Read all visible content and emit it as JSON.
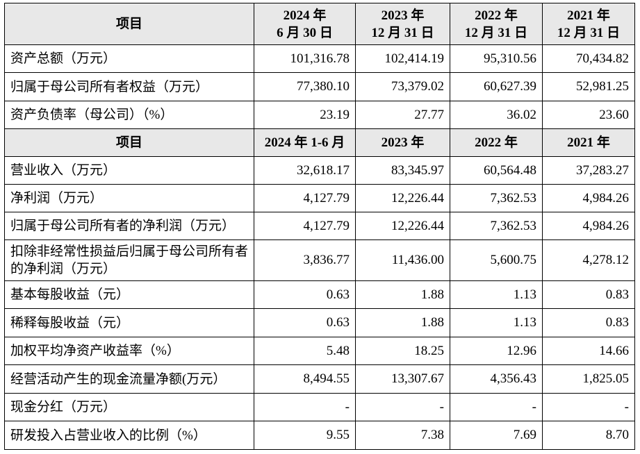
{
  "header1": {
    "item_label": "项目",
    "cols": [
      {
        "line1": "2024 年",
        "line2": "6 月 30 日"
      },
      {
        "line1": "2023 年",
        "line2": "12 月 31 日"
      },
      {
        "line1": "2022 年",
        "line2": "12 月 31 日"
      },
      {
        "line1": "2021 年",
        "line2": "12 月 31 日"
      }
    ]
  },
  "balance_rows": [
    {
      "label": "资产总额（万元）",
      "values": [
        "101,316.78",
        "102,414.19",
        "95,310.56",
        "70,434.82"
      ]
    },
    {
      "label": "归属于母公司所有者权益（万元）",
      "values": [
        "77,380.10",
        "73,379.02",
        "60,627.39",
        "52,981.25"
      ]
    },
    {
      "label": "资产负债率（母公司）（%）",
      "values": [
        "23.19",
        "27.77",
        "36.02",
        "23.60"
      ]
    }
  ],
  "header2": {
    "item_label": "项目",
    "cols": [
      "2024 年 1-6 月",
      "2023 年",
      "2022 年",
      "2021 年"
    ]
  },
  "income_rows": [
    {
      "label": "营业收入（万元）",
      "values": [
        "32,618.17",
        "83,345.97",
        "60,564.48",
        "37,283.27"
      ]
    },
    {
      "label": "净利润（万元）",
      "values": [
        "4,127.79",
        "12,226.44",
        "7,362.53",
        "4,984.26"
      ]
    },
    {
      "label": "归属于母公司所有者的净利润（万元）",
      "values": [
        "4,127.79",
        "12,226.44",
        "7,362.53",
        "4,984.26"
      ]
    },
    {
      "label": "扣除非经常性损益后归属于母公司所有者的净利润（万元）",
      "values": [
        "3,836.77",
        "11,436.00",
        "5,600.75",
        "4,278.12"
      ]
    },
    {
      "label": "基本每股收益（元）",
      "values": [
        "0.63",
        "1.88",
        "1.13",
        "0.83"
      ]
    },
    {
      "label": "稀释每股收益（元）",
      "values": [
        "0.63",
        "1.88",
        "1.13",
        "0.83"
      ]
    },
    {
      "label": "加权平均净资产收益率（%）",
      "values": [
        "5.48",
        "18.25",
        "12.96",
        "14.66"
      ]
    },
    {
      "label": "经营活动产生的现金流量净额(万元）",
      "values": [
        "8,494.55",
        "13,307.67",
        "4,356.43",
        "1,825.05"
      ]
    },
    {
      "label": "现金分红（万元）",
      "values": [
        "-",
        "-",
        "-",
        "-"
      ]
    },
    {
      "label": "研发投入占营业收入的比例（%）",
      "values": [
        "9.55",
        "7.38",
        "7.69",
        "8.70"
      ]
    }
  ]
}
